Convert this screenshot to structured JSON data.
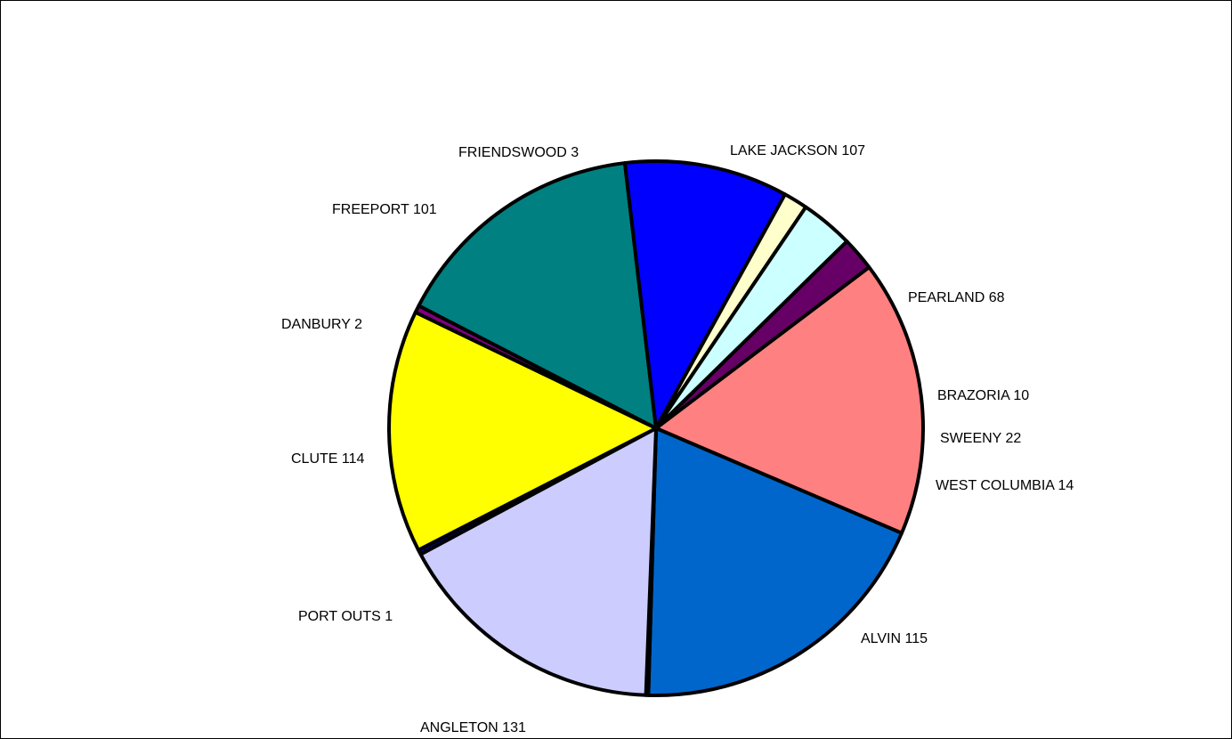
{
  "chart_data": {
    "type": "pie",
    "title": "",
    "slices": [
      {
        "label": "LAKE JACKSON 107",
        "name": "LAKE JACKSON",
        "value": 107,
        "color": "#008080"
      },
      {
        "label": "PEARLAND 68",
        "name": "PEARLAND",
        "value": 68,
        "color": "#0000ff"
      },
      {
        "label": "BRAZORIA 10",
        "name": "BRAZORIA",
        "value": 10,
        "color": "#ffffcc"
      },
      {
        "label": "SWEENY 22",
        "name": "SWEENY",
        "value": 22,
        "color": "#ccffff"
      },
      {
        "label": "WEST COLUMBIA 14",
        "name": "WEST COLUMBIA",
        "value": 14,
        "color": "#660066"
      },
      {
        "label": "ALVIN 115",
        "name": "ALVIN",
        "value": 115,
        "color": "#ff8080"
      },
      {
        "label": "ANGLETON 131",
        "name": "ANGLETON",
        "value": 131,
        "color": "#0066cc"
      },
      {
        "label": "PORT OUTS  1",
        "name": "PORT OUTS",
        "value": 1,
        "color": "#000080"
      },
      {
        "label": "CLUTE 114",
        "name": "CLUTE",
        "value": 114,
        "color": "#ccccff"
      },
      {
        "label": "DANBURY 2",
        "name": "DANBURY",
        "value": 2,
        "color": "#000080"
      },
      {
        "label": "FREEPORT 101",
        "name": "FREEPORT",
        "value": 101,
        "color": "#ffff00"
      },
      {
        "label": "FRIENDSWOOD 3",
        "name": "FRIENDSWOOD",
        "value": 3,
        "color": "#800080"
      }
    ],
    "legend": "none"
  }
}
